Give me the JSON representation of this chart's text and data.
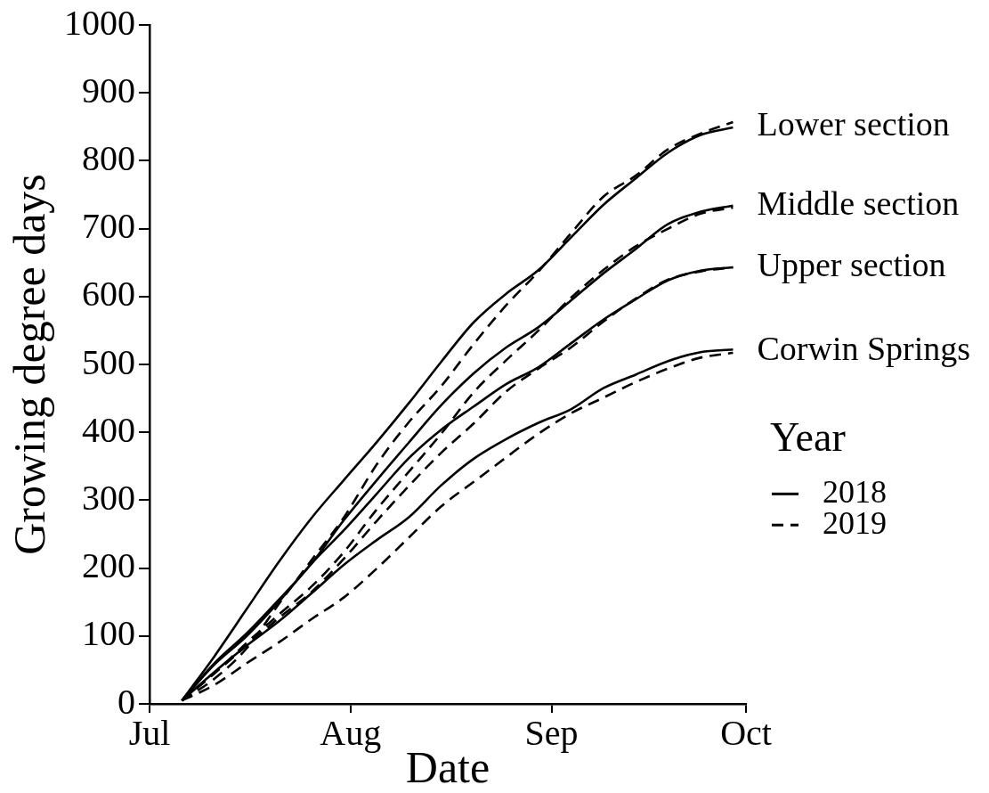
{
  "chart_data": {
    "type": "line",
    "xlabel": "Date",
    "ylabel": "Growing degree days",
    "legend_title": "Year",
    "legend": "right",
    "grid": false,
    "marker": "none",
    "xlim": [
      "--07-01",
      "--10-01"
    ],
    "xticks": [
      {
        "value": "--07-01",
        "label": "Jul"
      },
      {
        "value": "--08-01",
        "label": "Aug"
      },
      {
        "value": "--09-01",
        "label": "Sep"
      },
      {
        "value": "--10-01",
        "label": "Oct"
      }
    ],
    "ylim": [
      0,
      1000
    ],
    "yticks": [
      0,
      100,
      200,
      300,
      400,
      500,
      600,
      700,
      800,
      900,
      1000
    ],
    "x": [
      "--07-06",
      "--07-11",
      "--07-16",
      "--07-21",
      "--07-26",
      "--07-31",
      "--08-05",
      "--08-10",
      "--08-15",
      "--08-20",
      "--08-25",
      "--08-30",
      "--09-04",
      "--09-09",
      "--09-14",
      "--09-19",
      "--09-24",
      "--09-29"
    ],
    "series": [
      {
        "name": "2018",
        "color": "#000000",
        "line_style": "solid",
        "values": [
          5,
          70,
          140,
          210,
          274,
          330,
          385,
          443,
          504,
          562,
          604,
          639,
          687,
          735,
          774,
          812,
          838,
          849
        ]
      },
      {
        "name": "2019",
        "color": "#000000",
        "line_style": "dashed",
        "values": [
          5,
          37,
          82,
          148,
          212,
          275,
          352,
          415,
          468,
          530,
          587,
          637,
          693,
          747,
          778,
          817,
          840,
          857
        ]
      },
      {
        "color": "#000000",
        "line_style": "solid",
        "values": [
          5,
          60,
          104,
          154,
          207,
          271,
          329,
          385,
          440,
          487,
          525,
          555,
          594,
          634,
          670,
          707,
          725,
          734
        ]
      },
      {
        "color": "#000000",
        "line_style": "dashed",
        "values": [
          5,
          45,
          90,
          132,
          173,
          224,
          286,
          342,
          398,
          459,
          506,
          550,
          598,
          639,
          674,
          700,
          722,
          731
        ]
      },
      {
        "color": "#000000",
        "line_style": "solid",
        "values": [
          5,
          58,
          100,
          151,
          207,
          256,
          309,
          362,
          404,
          438,
          471,
          496,
          531,
          566,
          596,
          624,
          638,
          643
        ]
      },
      {
        "color": "#000000",
        "line_style": "dashed",
        "values": [
          5,
          45,
          86,
          127,
          165,
          214,
          269,
          321,
          370,
          413,
          460,
          494,
          525,
          563,
          597,
          625,
          637,
          643
        ]
      },
      {
        "color": "#000000",
        "line_style": "solid",
        "values": [
          5,
          47,
          86,
          122,
          163,
          205,
          241,
          275,
          322,
          361,
          390,
          414,
          434,
          465,
          485,
          505,
          518,
          522
        ]
      },
      {
        "color": "#000000",
        "line_style": "dashed",
        "values": [
          5,
          28,
          60,
          91,
          125,
          157,
          199,
          245,
          291,
          327,
          363,
          398,
          428,
          451,
          474,
          494,
          510,
          517
        ]
      }
    ],
    "annotations": [
      {
        "text": "Lower section",
        "x": "--09-29",
        "y": 850
      },
      {
        "text": "Middle section",
        "x": "--09-29",
        "y": 733
      },
      {
        "text": "Upper section",
        "x": "--09-29",
        "y": 643
      },
      {
        "text": "Corwin Springs",
        "x": "--09-29",
        "y": 520
      }
    ]
  }
}
